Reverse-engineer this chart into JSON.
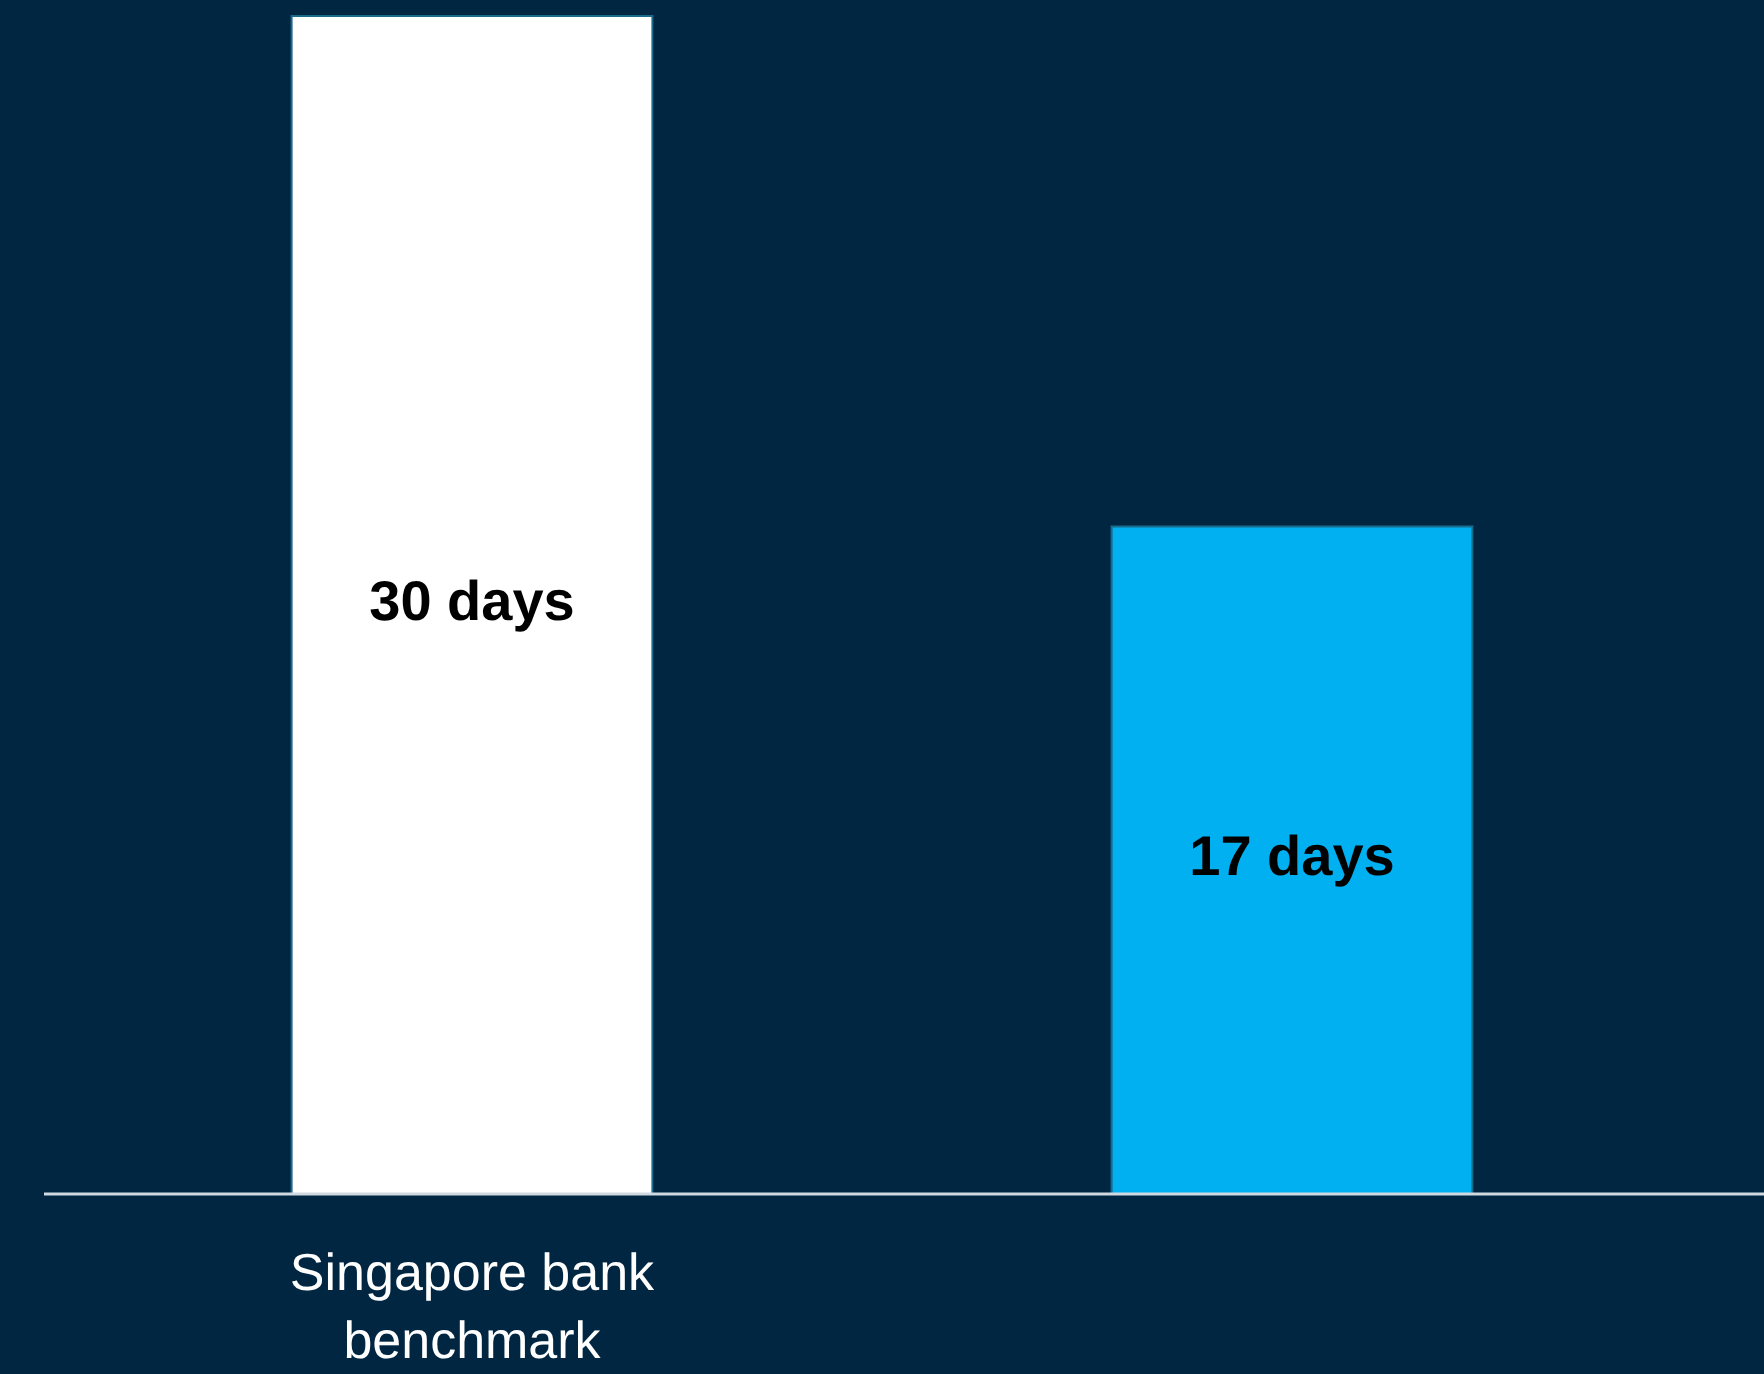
{
  "chart_data": {
    "type": "bar",
    "categories": [
      "Singapore bank benchmark",
      null
    ],
    "values": [
      30,
      17
    ],
    "colors": [
      "#ffffff",
      "#00b0f0"
    ],
    "value_labels": [
      "30 days",
      "17 days"
    ]
  }
}
